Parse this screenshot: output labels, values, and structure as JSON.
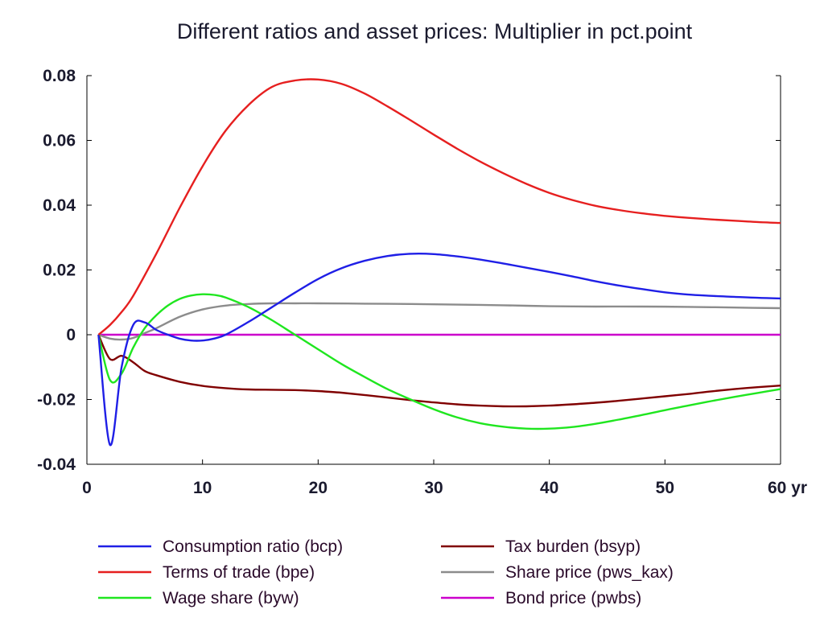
{
  "colors": {
    "text": "#1a1a2e",
    "axis": "#000000",
    "zero_line": "#cc00cc"
  },
  "chart_data": {
    "type": "line",
    "title": "Different ratios and asset prices: Multiplier in pct.point",
    "xlabel": "",
    "ylabel": "",
    "xlim": [
      0,
      60
    ],
    "ylim": [
      -0.04,
      0.08
    ],
    "x_ticks": [
      0,
      10,
      20,
      30,
      40,
      50,
      60
    ],
    "x_tick_labels": [
      "0",
      "10",
      "20",
      "30",
      "40",
      "50",
      "60 yr"
    ],
    "y_ticks": [
      -0.04,
      -0.02,
      0,
      0.02,
      0.04,
      0.06,
      0.08
    ],
    "y_tick_labels": [
      "-0.04",
      "-0.02",
      "0",
      "0.02",
      "0.04",
      "0.06",
      "0.08"
    ],
    "grid": false,
    "legend_position": "bottom",
    "series": [
      {
        "name": "Consumption ratio (bcp)",
        "color": "#1f1fe6",
        "x": [
          1,
          2,
          3,
          4,
          5,
          6,
          7,
          8,
          9,
          10,
          11,
          12,
          14,
          16,
          18,
          20,
          22,
          24,
          26,
          28,
          30,
          32,
          34,
          36,
          38,
          40,
          42,
          44,
          46,
          48,
          50,
          52,
          54,
          56,
          58,
          60
        ],
        "y": [
          0,
          -0.034,
          -0.01,
          0.003,
          0.0038,
          0.0015,
          0.0,
          -0.0012,
          -0.0018,
          -0.0018,
          -0.0012,
          0.0,
          0.004,
          0.0085,
          0.013,
          0.0172,
          0.0205,
          0.0228,
          0.0243,
          0.025,
          0.0249,
          0.0242,
          0.0232,
          0.022,
          0.0207,
          0.0194,
          0.018,
          0.0165,
          0.0152,
          0.0141,
          0.0131,
          0.0124,
          0.012,
          0.0117,
          0.0114,
          0.0112
        ]
      },
      {
        "name": "Terms of trade (bpe)",
        "color": "#e61f1f",
        "x": [
          1,
          2,
          3,
          4,
          6,
          8,
          10,
          12,
          14,
          16,
          18,
          20,
          22,
          24,
          26,
          28,
          30,
          32,
          34,
          36,
          38,
          40,
          42,
          44,
          46,
          48,
          50,
          52,
          54,
          56,
          58,
          60
        ],
        "y": [
          0,
          0.003,
          0.007,
          0.012,
          0.025,
          0.039,
          0.052,
          0.063,
          0.071,
          0.0765,
          0.0785,
          0.0788,
          0.0775,
          0.0745,
          0.0705,
          0.0662,
          0.0618,
          0.0575,
          0.0535,
          0.0499,
          0.0466,
          0.0438,
          0.0416,
          0.0398,
          0.0385,
          0.0375,
          0.0367,
          0.0361,
          0.0356,
          0.0352,
          0.0348,
          0.0345
        ]
      },
      {
        "name": "Wage share (byw)",
        "color": "#1fe61f",
        "x": [
          1,
          2,
          3,
          4,
          5,
          6,
          7,
          8,
          9,
          10,
          11,
          12,
          14,
          16,
          18,
          20,
          22,
          24,
          26,
          28,
          30,
          32,
          34,
          36,
          38,
          40,
          42,
          44,
          46,
          48,
          50,
          52,
          54,
          56,
          58,
          60
        ],
        "y": [
          0,
          -0.014,
          -0.012,
          -0.004,
          0.002,
          0.006,
          0.009,
          0.011,
          0.0121,
          0.0125,
          0.0123,
          0.0115,
          0.0085,
          0.0045,
          0.0,
          -0.0045,
          -0.009,
          -0.013,
          -0.0168,
          -0.02,
          -0.023,
          -0.0255,
          -0.0273,
          -0.0284,
          -0.029,
          -0.029,
          -0.0285,
          -0.0275,
          -0.0262,
          -0.0248,
          -0.0233,
          -0.0219,
          -0.0205,
          -0.0192,
          -0.018,
          -0.0168
        ]
      },
      {
        "name": "Tax burden (bsyp)",
        "color": "#800000",
        "x": [
          1,
          2,
          3,
          4,
          5,
          6,
          8,
          10,
          12,
          14,
          16,
          18,
          20,
          22,
          24,
          26,
          28,
          30,
          32,
          34,
          36,
          38,
          40,
          42,
          44,
          46,
          48,
          50,
          52,
          54,
          56,
          58,
          60
        ],
        "y": [
          0,
          -0.0075,
          -0.0065,
          -0.0085,
          -0.0112,
          -0.0125,
          -0.0145,
          -0.0158,
          -0.0165,
          -0.0169,
          -0.017,
          -0.0171,
          -0.0174,
          -0.0179,
          -0.0186,
          -0.0194,
          -0.0202,
          -0.0209,
          -0.0215,
          -0.0219,
          -0.0221,
          -0.0221,
          -0.0219,
          -0.0215,
          -0.021,
          -0.0204,
          -0.0197,
          -0.019,
          -0.0183,
          -0.0175,
          -0.0168,
          -0.0162,
          -0.0157
        ]
      },
      {
        "name": "Share price (pws_kax)",
        "color": "#8c8c8c",
        "x": [
          1,
          2,
          3,
          4,
          5,
          6,
          8,
          10,
          12,
          14,
          16,
          18,
          20,
          24,
          28,
          32,
          36,
          40,
          44,
          48,
          52,
          56,
          60
        ],
        "y": [
          0,
          -0.0012,
          -0.0015,
          -0.001,
          0.0005,
          0.002,
          0.0055,
          0.0078,
          0.009,
          0.0095,
          0.0097,
          0.0097,
          0.0097,
          0.0096,
          0.0095,
          0.0093,
          0.0091,
          0.0088,
          0.0087,
          0.0087,
          0.0086,
          0.0084,
          0.0082
        ]
      },
      {
        "name": "Bond price (pwbs)",
        "color": "#cc00cc",
        "x": [
          1,
          60
        ],
        "y": [
          0,
          0
        ]
      }
    ],
    "legend_columns": [
      [
        "Consumption ratio (bcp)",
        "Terms of trade (bpe)",
        "Wage share (byw)"
      ],
      [
        "Tax burden (bsyp)",
        "Share price (pws_kax)",
        "Bond price (pwbs)"
      ]
    ]
  }
}
